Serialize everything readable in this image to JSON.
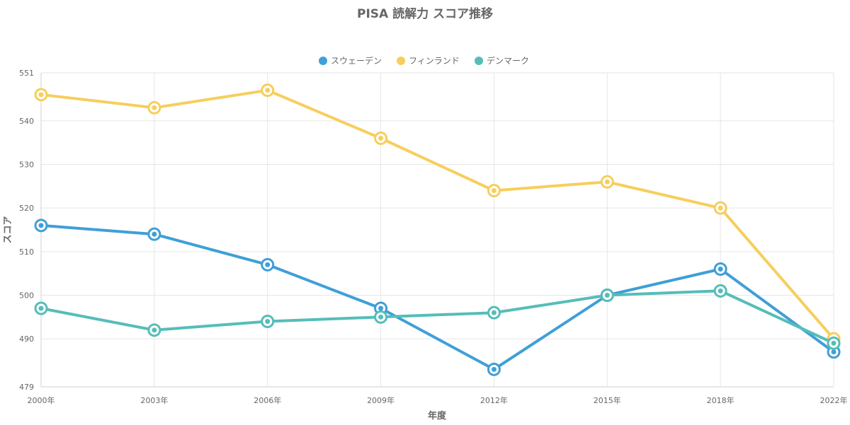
{
  "chart_data": {
    "type": "line",
    "title": "PISA 読解力 スコア推移",
    "xlabel": "年度",
    "ylabel": "スコア",
    "categories": [
      "2000年",
      "2003年",
      "2006年",
      "2009年",
      "2012年",
      "2015年",
      "2018年",
      "2022年"
    ],
    "ylim": [
      479,
      551
    ],
    "yticks": [
      479,
      490,
      500,
      510,
      520,
      530,
      540,
      551
    ],
    "grid": true,
    "legend_position": "top",
    "series": [
      {
        "name": "スウェーデン",
        "color": "#3f9fd8",
        "values": [
          516,
          514,
          507,
          497,
          483,
          500,
          506,
          487
        ]
      },
      {
        "name": "フィンランド",
        "color": "#f7ce5c",
        "values": [
          546,
          543,
          547,
          536,
          524,
          526,
          520,
          490
        ]
      },
      {
        "name": "デンマーク",
        "color": "#55bdb9",
        "values": [
          497,
          492,
          494,
          495,
          496,
          500,
          501,
          489
        ]
      }
    ]
  }
}
